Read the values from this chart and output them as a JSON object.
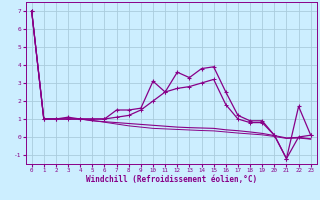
{
  "xlabel": "Windchill (Refroidissement éolien,°C)",
  "xlim": [
    -0.5,
    23.5
  ],
  "ylim": [
    -1.5,
    7.5
  ],
  "yticks": [
    -1,
    0,
    1,
    2,
    3,
    4,
    5,
    6,
    7
  ],
  "xticks": [
    0,
    1,
    2,
    3,
    4,
    5,
    6,
    7,
    8,
    9,
    10,
    11,
    12,
    13,
    14,
    15,
    16,
    17,
    18,
    19,
    20,
    21,
    22,
    23
  ],
  "bg_color": "#cceeff",
  "grid_color": "#aaccdd",
  "line_color": "#880088",
  "series1": {
    "x": [
      0,
      1,
      2,
      3,
      4,
      5,
      6,
      7,
      8,
      9,
      10,
      11,
      12,
      13,
      14,
      15,
      16,
      17,
      18,
      19,
      20,
      21,
      22,
      23
    ],
    "y": [
      7.0,
      1.0,
      1.0,
      1.1,
      1.0,
      1.0,
      1.0,
      1.5,
      1.5,
      1.6,
      3.1,
      2.5,
      3.6,
      3.3,
      3.8,
      3.9,
      2.5,
      1.2,
      0.9,
      0.9,
      0.1,
      -1.2,
      1.7,
      0.1
    ]
  },
  "series2": {
    "x": [
      0,
      1,
      2,
      3,
      4,
      5,
      6,
      7,
      8,
      9,
      10,
      11,
      12,
      13,
      14,
      15,
      16,
      17,
      18,
      19,
      20,
      21,
      22,
      23
    ],
    "y": [
      7.0,
      1.0,
      1.0,
      1.0,
      1.0,
      1.0,
      1.0,
      1.1,
      1.2,
      1.5,
      2.0,
      2.5,
      2.7,
      2.8,
      3.0,
      3.2,
      1.8,
      1.0,
      0.8,
      0.8,
      0.1,
      -1.2,
      0.0,
      0.1
    ]
  },
  "series3": {
    "x": [
      0,
      1,
      2,
      3,
      4,
      5,
      6,
      7,
      8,
      9,
      10,
      11,
      12,
      13,
      14,
      15,
      16,
      17,
      18,
      19,
      20,
      21,
      22,
      23
    ],
    "y": [
      7.0,
      1.0,
      1.0,
      1.0,
      1.0,
      0.9,
      0.85,
      0.8,
      0.75,
      0.7,
      0.65,
      0.6,
      0.55,
      0.52,
      0.5,
      0.48,
      0.4,
      0.35,
      0.28,
      0.2,
      0.08,
      -0.05,
      -0.02,
      -0.1
    ]
  },
  "series4": {
    "x": [
      0,
      1,
      2,
      3,
      4,
      5,
      6,
      7,
      8,
      9,
      10,
      11,
      12,
      13,
      14,
      15,
      16,
      17,
      18,
      19,
      20,
      21,
      22,
      23
    ],
    "y": [
      7.0,
      1.0,
      1.0,
      1.0,
      1.0,
      0.92,
      0.82,
      0.72,
      0.62,
      0.55,
      0.48,
      0.45,
      0.42,
      0.39,
      0.36,
      0.34,
      0.28,
      0.22,
      0.17,
      0.12,
      0.03,
      -0.08,
      -0.06,
      -0.12
    ]
  }
}
